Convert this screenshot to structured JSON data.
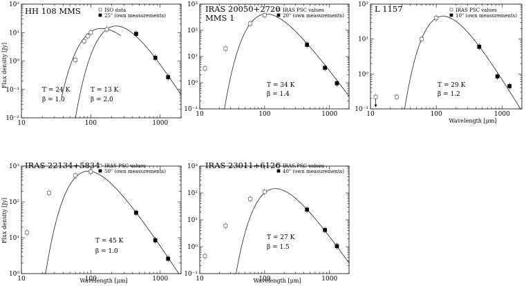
{
  "chart_data": [
    {
      "type": "scatter",
      "title": "HH 108 MMS",
      "subtitle": "",
      "xlabel": "",
      "ylabel": "Flux density [Jy]",
      "xscale": "log",
      "yscale": "log",
      "xlim": [
        10,
        2000
      ],
      "ylim": [
        0.01,
        100
      ],
      "x_ticks": [
        "10",
        "100",
        "1000"
      ],
      "y_ticks": [
        "10⁻²",
        "10⁻¹",
        "10⁰",
        "10¹",
        "10²"
      ],
      "legend": [
        "ISO data",
        "25\" (own measurements)"
      ],
      "annotations": [
        "T = 24 K",
        "β = 1.0",
        "T = 13 K",
        "β = 2.0"
      ],
      "series": [
        {
          "name": "ISO data",
          "marker": "open-square",
          "x": [
            60,
            80,
            90,
            100,
            170
          ],
          "y": [
            1.1,
            5.0,
            7.5,
            10.0,
            13.0
          ]
        },
        {
          "name": "25\" (own measurements)",
          "marker": "filled-square",
          "x": [
            450,
            850,
            1300
          ],
          "y": [
            9.0,
            1.3,
            0.27
          ]
        }
      ],
      "fits": [
        {
          "T": 24,
          "beta": 1.0,
          "peak_x": 140,
          "peak_y": 14,
          "range": [
            38,
            270
          ]
        },
        {
          "T": 13,
          "beta": 2.0,
          "peak_x": 230,
          "peak_y": 17,
          "range": [
            60,
            2000
          ]
        }
      ]
    },
    {
      "type": "scatter",
      "title": "IRAS 20050+2720",
      "subtitle": "MMS 1",
      "xlabel": "",
      "ylabel": "",
      "xscale": "log",
      "yscale": "log",
      "xlim": [
        10,
        2000
      ],
      "ylim": [
        0.1,
        1000
      ],
      "x_ticks": [
        "10",
        "100",
        "1000"
      ],
      "y_ticks": [
        "10⁻¹",
        "10⁰",
        "10¹",
        "10²",
        "10³"
      ],
      "legend": [
        "IRAS PSC values",
        "20\" (own measurements)"
      ],
      "annotations": [
        "T = 34 K",
        "β = 1.4"
      ],
      "series": [
        {
          "name": "IRAS PSC values",
          "marker": "open-square",
          "x": [
            12,
            25,
            60,
            100
          ],
          "y": [
            3.5,
            20,
            180,
            380
          ]
        },
        {
          "name": "20\" (own measurements)",
          "marker": "filled-square",
          "x": [
            450,
            850,
            1300
          ],
          "y": [
            28,
            3.7,
            0.95
          ]
        }
      ],
      "fits": [
        {
          "T": 34,
          "beta": 1.4,
          "peak_x": 105,
          "peak_y": 420,
          "range": [
            22,
            2000
          ]
        }
      ]
    },
    {
      "type": "scatter",
      "title": "L 1157",
      "subtitle": "",
      "xlabel": "Wavelength [μm]",
      "ylabel": "",
      "xscale": "log",
      "yscale": "log",
      "xlim": [
        10,
        2000
      ],
      "ylim": [
        0.1,
        100
      ],
      "x_ticks": [
        "10",
        "100",
        "1000"
      ],
      "y_ticks": [
        "10⁻¹",
        "10⁰",
        "10¹",
        "10²"
      ],
      "legend": [
        "IRAS PSC values",
        "10\" (own measurements)"
      ],
      "annotations": [
        "T = 29 K",
        "β = 1.2"
      ],
      "series": [
        {
          "name": "IRAS PSC values",
          "marker": "open-square",
          "x": [
            12,
            25,
            60,
            100
          ],
          "y": [
            0.22,
            0.22,
            10,
            40
          ]
        },
        {
          "name": "10\" (own measurements)",
          "marker": "filled-square",
          "x": [
            450,
            850,
            1300
          ],
          "y": [
            6.0,
            0.85,
            0.45
          ]
        }
      ],
      "fits": [
        {
          "T": 29,
          "beta": 1.2,
          "peak_x": 125,
          "peak_y": 45,
          "range": [
            30,
            2000
          ]
        }
      ]
    },
    {
      "type": "scatter",
      "title": "IRAS 22134+5834",
      "subtitle": "",
      "xlabel": "Wavelength [μm]",
      "ylabel": "Flux density [Jy]",
      "xscale": "log",
      "yscale": "log",
      "xlim": [
        10,
        2000
      ],
      "ylim": [
        1,
        1000
      ],
      "x_ticks": [
        "10",
        "100",
        "1000"
      ],
      "y_ticks": [
        "10⁰",
        "10¹",
        "10²",
        "10³"
      ],
      "legend": [
        "IRAS PSC values",
        "50\" (own measurements)"
      ],
      "annotations": [
        "T = 45 K",
        "β = 1.0"
      ],
      "series": [
        {
          "name": "IRAS PSC values",
          "marker": "open-square",
          "x": [
            12,
            25,
            60,
            100
          ],
          "y": [
            14,
            180,
            550,
            700
          ]
        },
        {
          "name": "50\" (own measurements)",
          "marker": "filled-square",
          "x": [
            450,
            850,
            1300
          ],
          "y": [
            50,
            8.5,
            2.6
          ]
        }
      ],
      "fits": [
        {
          "T": 45,
          "beta": 1.0,
          "peak_x": 90,
          "peak_y": 720,
          "range": [
            20,
            2000
          ]
        }
      ]
    },
    {
      "type": "scatter",
      "title": "IRAS 23011+6126",
      "subtitle": "",
      "xlabel": "Wavelength [μm]",
      "ylabel": "",
      "xscale": "log",
      "yscale": "log",
      "xlim": [
        10,
        2000
      ],
      "ylim": [
        0.1,
        1000
      ],
      "x_ticks": [
        "10",
        "100",
        "1000"
      ],
      "y_ticks": [
        "10⁻¹",
        "10⁰",
        "10¹",
        "10²",
        "10³"
      ],
      "legend": [
        "IRAS PSC values",
        "40\" (own measurements)"
      ],
      "annotations": [
        "T = 27 K",
        "β = 1.5"
      ],
      "series": [
        {
          "name": "IRAS PSC values",
          "marker": "open-square",
          "x": [
            12,
            25,
            60,
            100
          ],
          "y": [
            0.45,
            6,
            60,
            110
          ]
        },
        {
          "name": "40\" (own measurements)",
          "marker": "filled-square",
          "x": [
            450,
            850,
            1300
          ],
          "y": [
            24,
            4.2,
            1.05
          ]
        }
      ],
      "fits": [
        {
          "T": 27,
          "beta": 1.5,
          "peak_x": 145,
          "peak_y": 145,
          "range": [
            33,
            2000
          ]
        }
      ]
    }
  ]
}
